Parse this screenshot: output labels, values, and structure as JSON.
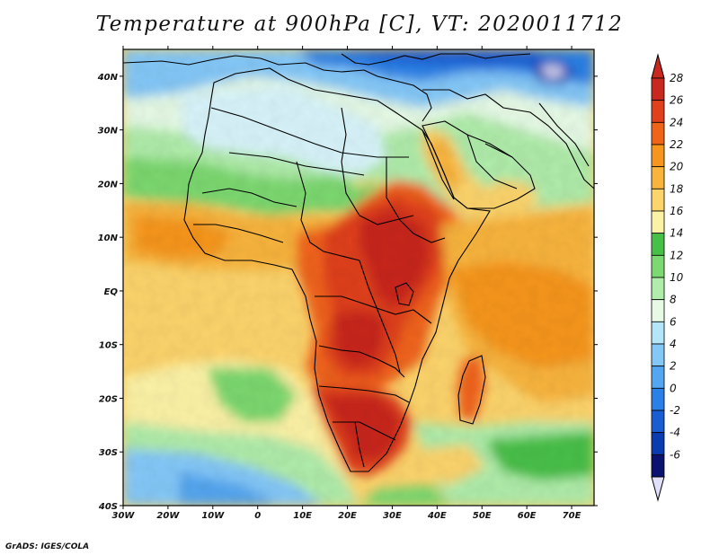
{
  "title": "Temperature at 900hPa [C], VT: 2020011712",
  "credit": "GrADS: IGES/COLA",
  "map": {
    "projection": "latlon",
    "lon_range": [
      -30,
      75
    ],
    "lat_range": [
      -40,
      45
    ],
    "lon_labels": [
      "30W",
      "20W",
      "10W",
      "0",
      "10E",
      "20E",
      "30E",
      "40E",
      "50E",
      "60E",
      "70E"
    ],
    "lat_labels": [
      "40N",
      "30N",
      "20N",
      "10N",
      "EQ",
      "10S",
      "20S",
      "30S",
      "40S"
    ]
  },
  "colorbar": {
    "labels": [
      "28",
      "26",
      "24",
      "22",
      "20",
      "18",
      "16",
      "14",
      "12",
      "10",
      "8",
      "6",
      "4",
      "2",
      "0",
      "-2",
      "-4",
      "-6"
    ],
    "colors": [
      "#c8281e",
      "#e0401c",
      "#f0641a",
      "#f6961e",
      "#f8b43c",
      "#fcd46c",
      "#fcf2a6",
      "#48c048",
      "#7cd870",
      "#b0ecaa",
      "#e6fae6",
      "#b4e6fa",
      "#84c8f8",
      "#54a6f0",
      "#2a80e6",
      "#1a5cd2",
      "#0a3cb0",
      "#0a1470",
      "#d8d8f8"
    ],
    "over_color": "#c8281e",
    "under_color": "#e0e0fa"
  }
}
